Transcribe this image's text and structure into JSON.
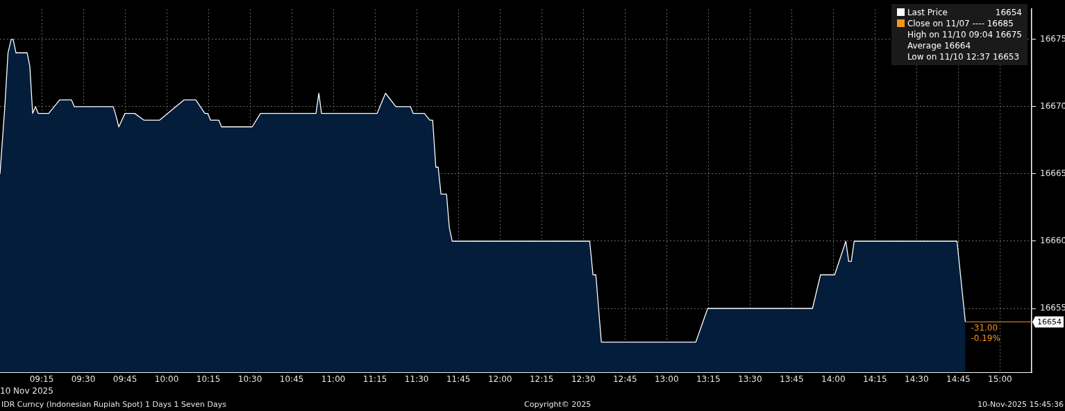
{
  "chart_data": {
    "type": "area",
    "title": "IDR Curncy (Indonesian Rupiah Spot) 1 Days 1 Seven Days",
    "xlabel": "10 Nov 2025",
    "x": [
      9.0,
      9.029,
      9.048,
      9.067,
      9.079,
      9.096,
      9.163,
      9.179,
      9.196,
      9.213,
      9.229,
      9.292,
      9.358,
      9.429,
      9.446,
      9.679,
      9.692,
      9.713,
      9.75,
      9.808,
      9.863,
      9.958,
      10.104,
      10.175,
      10.229,
      10.246,
      10.263,
      10.313,
      10.329,
      10.513,
      10.563,
      10.896,
      10.913,
      10.929,
      11.263,
      11.313,
      11.375,
      11.463,
      11.479,
      11.546,
      11.579,
      11.596,
      11.615,
      11.629,
      11.646,
      11.679,
      11.696,
      11.713,
      12.538,
      12.558,
      12.575,
      12.608,
      13.175,
      13.246,
      13.875,
      13.923,
      14.008,
      14.075,
      14.092,
      14.108,
      14.125,
      14.742,
      14.792
    ],
    "series": [
      {
        "name": "Last Price",
        "color": "#ffffff",
        "values": [
          16665,
          16670,
          16674,
          16675,
          16675,
          16674,
          16674,
          16673,
          16669.5,
          16670,
          16669.5,
          16669.5,
          16670.5,
          16670.5,
          16670,
          16670,
          16669.5,
          16668.5,
          16669.5,
          16669.5,
          16669,
          16669,
          16670.5,
          16670.5,
          16669.5,
          16669.5,
          16669,
          16669,
          16668.5,
          16668.5,
          16669.5,
          16669.5,
          16671,
          16669.5,
          16669.5,
          16671,
          16670,
          16670,
          16669.5,
          16669.5,
          16669,
          16669,
          16665.5,
          16665.5,
          16663.5,
          16663.5,
          16661,
          16660,
          16660,
          16657.5,
          16657.5,
          16652.5,
          16652.5,
          16655,
          16655,
          16657.5,
          16657.5,
          16660,
          16658.5,
          16658.5,
          16660,
          16660,
          16654
        ]
      }
    ],
    "xlim": [
      9.0,
      15.19
    ],
    "ylim": [
      16650.25,
      16677.25
    ],
    "xticks": [
      {
        "value": 9.25,
        "label": "09:15"
      },
      {
        "value": 9.5,
        "label": "09:30"
      },
      {
        "value": 9.75,
        "label": "09:45"
      },
      {
        "value": 10,
        "label": "10:00"
      },
      {
        "value": 10.25,
        "label": "10:15"
      },
      {
        "value": 10.5,
        "label": "10:30"
      },
      {
        "value": 10.75,
        "label": "10:45"
      },
      {
        "value": 11,
        "label": "11:00"
      },
      {
        "value": 11.25,
        "label": "11:15"
      },
      {
        "value": 11.5,
        "label": "11:30"
      },
      {
        "value": 11.75,
        "label": "11:45"
      },
      {
        "value": 12,
        "label": "12:00"
      },
      {
        "value": 12.25,
        "label": "12:15"
      },
      {
        "value": 12.5,
        "label": "12:30"
      },
      {
        "value": 12.75,
        "label": "12:45"
      },
      {
        "value": 13,
        "label": "13:00"
      },
      {
        "value": 13.25,
        "label": "13:15"
      },
      {
        "value": 13.5,
        "label": "13:30"
      },
      {
        "value": 13.75,
        "label": "13:45"
      },
      {
        "value": 14,
        "label": "14:00"
      },
      {
        "value": 14.25,
        "label": "14:15"
      },
      {
        "value": 14.5,
        "label": "14:30"
      },
      {
        "value": 14.75,
        "label": "14:45"
      },
      {
        "value": 15,
        "label": "15:00"
      }
    ],
    "yticks": [
      16655,
      16660,
      16665,
      16670,
      16675
    ],
    "ref_lines": [
      {
        "axis": "y",
        "value": 16654,
        "label": "16654",
        "color": "#f7941d"
      }
    ],
    "annotations": [
      "Close on 11/07 ---- 16685",
      "High on 11/10 09:04 16675",
      "Average 16664",
      "Low on 11/10 12:37 16653",
      "-31.00",
      "-0.19%",
      "Copyright© 2025",
      "10-Nov-2025 15:45:36"
    ],
    "grid": true,
    "legend": "top right",
    "marker": "none",
    "line_style": "solid"
  }
}
